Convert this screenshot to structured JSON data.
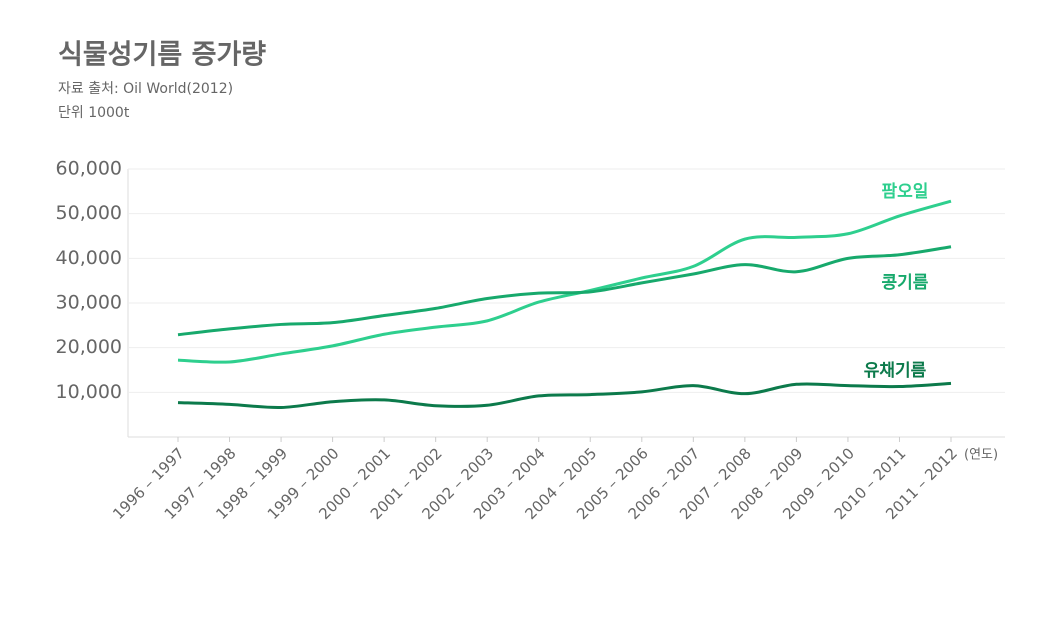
{
  "chart_data": {
    "type": "line",
    "title": "식물성기름 증가량",
    "subtitle": "자료 출처: Oil World(2012)",
    "unit_note": "단위 1000t",
    "x_label": "(연도)",
    "categories": [
      "1996 – 1997",
      "1997 – 1998",
      "1998 – 1999",
      "1999 – 2000",
      "2000 – 2001",
      "2001 – 2002",
      "2002 – 2003",
      "2003 – 2004",
      "2004 – 2005",
      "2005 – 2006",
      "2006 – 2007",
      "2007 – 2008",
      "2008 – 2009",
      "2009 – 2010",
      "2010 – 2011",
      "2011 – 2012"
    ],
    "series": [
      {
        "name": "팜오일",
        "color": "#2ecf8e",
        "values": [
          17200,
          16800,
          18600,
          20400,
          23000,
          24600,
          26000,
          30200,
          32800,
          35600,
          38200,
          44300,
          44700,
          45500,
          49500,
          52800
        ]
      },
      {
        "name": "콩기름",
        "color": "#17a96c",
        "values": [
          22900,
          24200,
          25200,
          25600,
          27200,
          28800,
          31000,
          32200,
          32500,
          34500,
          36500,
          38600,
          37000,
          40000,
          40800,
          42600
        ]
      },
      {
        "name": "유채기름",
        "color": "#0c7a4b",
        "values": [
          7700,
          7300,
          6600,
          7900,
          8300,
          7000,
          7100,
          9200,
          9500,
          10100,
          11500,
          9700,
          11800,
          11500,
          11300,
          12000
        ]
      }
    ],
    "ylim": [
      0,
      60000
    ],
    "yticks": [
      {
        "value": 10000,
        "label": "10,000"
      },
      {
        "value": 20000,
        "label": "20,000"
      },
      {
        "value": 30000,
        "label": "30,000"
      },
      {
        "value": 40000,
        "label": "40,000"
      },
      {
        "value": 50000,
        "label": "50,000"
      },
      {
        "value": 60000,
        "label": "60,000"
      }
    ],
    "grid": true
  }
}
